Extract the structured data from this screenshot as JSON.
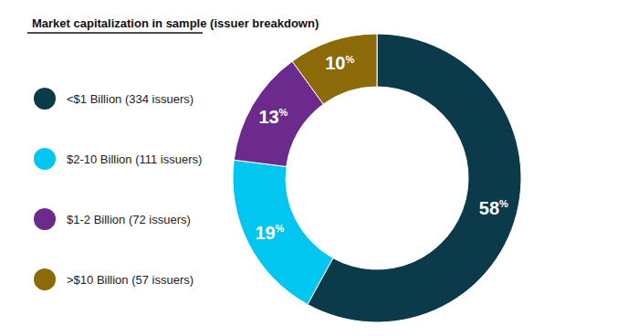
{
  "chart_data": {
    "type": "pie",
    "title": "Market capitalization in sample (issuer breakdown)",
    "categories": [
      "<$1 Billion (334 issuers)",
      "$2-10 Billion (111 issuers)",
      "$1-2 Billion (72 issuers)",
      ">$10 Billion (57 issuers)"
    ],
    "values": [
      58,
      19,
      13,
      10
    ],
    "value_labels": [
      "58%",
      "19%",
      "13%",
      "10%"
    ],
    "colors": [
      "#0b3a4a",
      "#00c6f0",
      "#6b2a8c",
      "#8c6a08"
    ],
    "data_labels": true,
    "legend": "left"
  }
}
